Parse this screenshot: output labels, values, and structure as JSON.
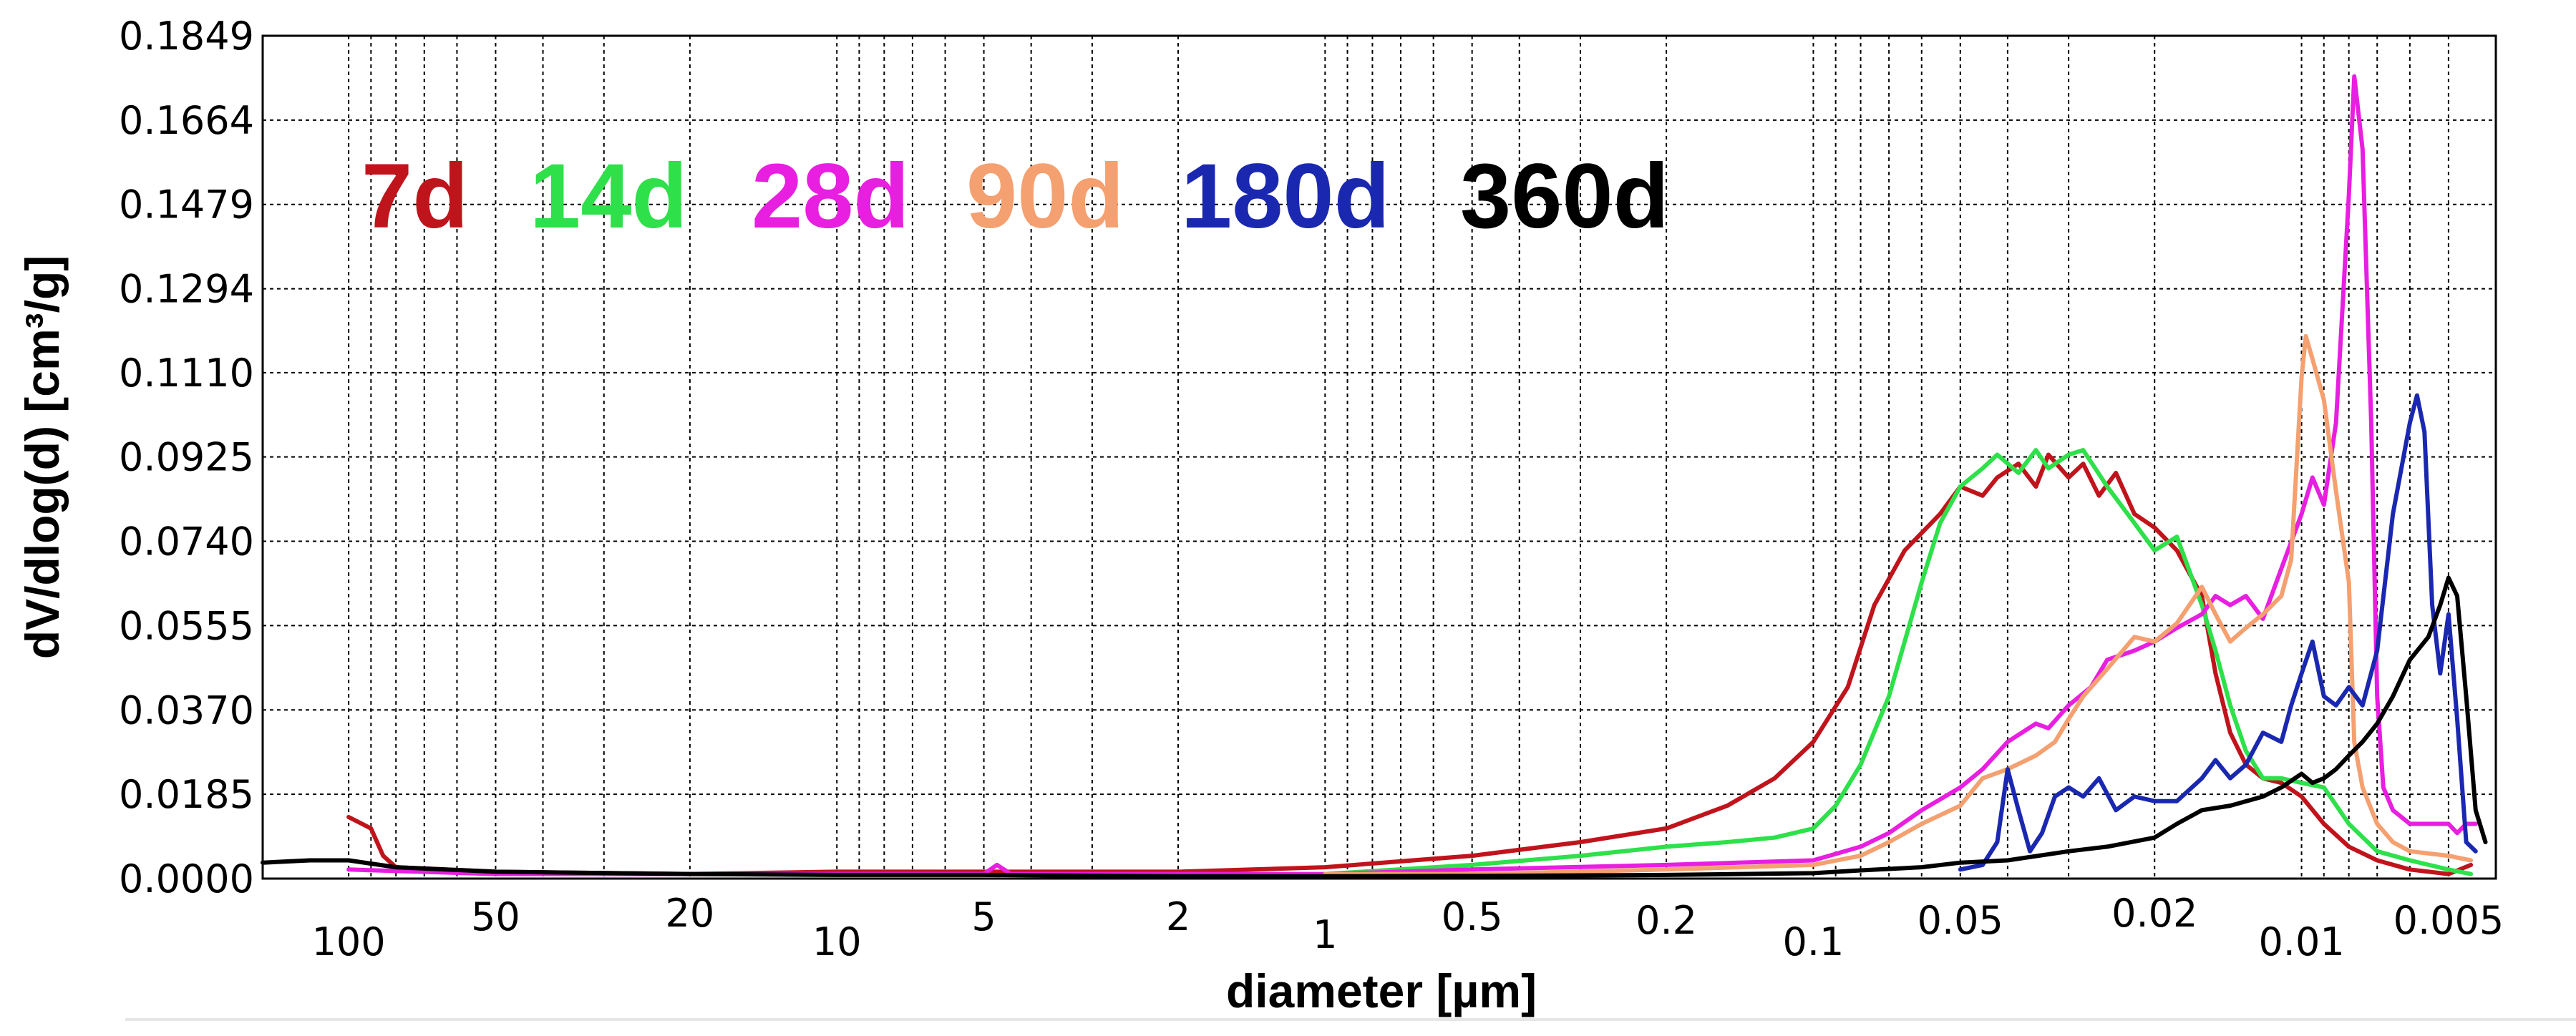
{
  "chart_data": {
    "type": "line",
    "title": "",
    "xlabel": "diameter [µm]",
    "ylabel": "dV/dlog(d) [cm³/g]",
    "x_scale": "log",
    "x_reversed": true,
    "xlim": [
      150,
      0.004
    ],
    "ylim": [
      0,
      0.1849
    ],
    "grid": true,
    "legend_position": "top-left",
    "y_ticks": [
      "0.0000",
      "0.0185",
      "0.0370",
      "0.0555",
      "0.0740",
      "0.0925",
      "0.1110",
      "0.1294",
      "0.1479",
      "0.1664",
      "0.1849"
    ],
    "x_ticks": [
      {
        "value": 100,
        "label": "100"
      },
      {
        "value": 50,
        "label": "50"
      },
      {
        "value": 20,
        "label": "20"
      },
      {
        "value": 10,
        "label": "10"
      },
      {
        "value": 5,
        "label": "5"
      },
      {
        "value": 2,
        "label": "2"
      },
      {
        "value": 1,
        "label": "1"
      },
      {
        "value": 0.5,
        "label": "0.5"
      },
      {
        "value": 0.2,
        "label": "0.2"
      },
      {
        "value": 0.1,
        "label": "0.1"
      },
      {
        "value": 0.05,
        "label": "0.05"
      },
      {
        "value": 0.02,
        "label": "0.02"
      },
      {
        "value": 0.01,
        "label": "0.01"
      },
      {
        "value": 0.005,
        "label": "0.005"
      }
    ],
    "series": [
      {
        "name": "7d",
        "color": "#c0141c",
        "points": [
          [
            100,
            0.0135
          ],
          [
            90,
            0.011
          ],
          [
            85,
            0.005
          ],
          [
            80,
            0.0025
          ],
          [
            50,
            0.0015
          ],
          [
            20,
            0.001
          ],
          [
            10,
            0.0015
          ],
          [
            5,
            0.0015
          ],
          [
            2,
            0.0015
          ],
          [
            1,
            0.0025
          ],
          [
            0.5,
            0.005
          ],
          [
            0.3,
            0.008
          ],
          [
            0.2,
            0.011
          ],
          [
            0.15,
            0.016
          ],
          [
            0.12,
            0.022
          ],
          [
            0.1,
            0.03
          ],
          [
            0.085,
            0.042
          ],
          [
            0.075,
            0.06
          ],
          [
            0.065,
            0.072
          ],
          [
            0.055,
            0.08
          ],
          [
            0.05,
            0.086
          ],
          [
            0.045,
            0.084
          ],
          [
            0.042,
            0.088
          ],
          [
            0.038,
            0.091
          ],
          [
            0.035,
            0.086
          ],
          [
            0.033,
            0.093
          ],
          [
            0.03,
            0.088
          ],
          [
            0.028,
            0.091
          ],
          [
            0.026,
            0.084
          ],
          [
            0.024,
            0.089
          ],
          [
            0.022,
            0.08
          ],
          [
            0.02,
            0.077
          ],
          [
            0.018,
            0.072
          ],
          [
            0.016,
            0.062
          ],
          [
            0.015,
            0.045
          ],
          [
            0.014,
            0.032
          ],
          [
            0.013,
            0.025
          ],
          [
            0.012,
            0.022
          ],
          [
            0.011,
            0.021
          ],
          [
            0.01,
            0.018
          ],
          [
            0.009,
            0.012
          ],
          [
            0.008,
            0.007
          ],
          [
            0.007,
            0.004
          ],
          [
            0.006,
            0.002
          ],
          [
            0.005,
            0.001
          ],
          [
            0.0045,
            0.003
          ]
        ]
      },
      {
        "name": "14d",
        "color": "#2ee04a",
        "points": [
          [
            1,
            0.001
          ],
          [
            0.5,
            0.003
          ],
          [
            0.3,
            0.005
          ],
          [
            0.2,
            0.007
          ],
          [
            0.15,
            0.008
          ],
          [
            0.12,
            0.009
          ],
          [
            0.1,
            0.011
          ],
          [
            0.09,
            0.016
          ],
          [
            0.08,
            0.025
          ],
          [
            0.07,
            0.04
          ],
          [
            0.06,
            0.065
          ],
          [
            0.055,
            0.078
          ],
          [
            0.05,
            0.086
          ],
          [
            0.045,
            0.09
          ],
          [
            0.042,
            0.093
          ],
          [
            0.038,
            0.089
          ],
          [
            0.035,
            0.094
          ],
          [
            0.033,
            0.09
          ],
          [
            0.03,
            0.093
          ],
          [
            0.028,
            0.094
          ],
          [
            0.025,
            0.086
          ],
          [
            0.022,
            0.078
          ],
          [
            0.02,
            0.072
          ],
          [
            0.018,
            0.075
          ],
          [
            0.016,
            0.06
          ],
          [
            0.015,
            0.05
          ],
          [
            0.014,
            0.038
          ],
          [
            0.013,
            0.028
          ],
          [
            0.012,
            0.022
          ],
          [
            0.011,
            0.022
          ],
          [
            0.01,
            0.021
          ],
          [
            0.009,
            0.02
          ],
          [
            0.008,
            0.012
          ],
          [
            0.007,
            0.006
          ],
          [
            0.006,
            0.004
          ],
          [
            0.005,
            0.002
          ],
          [
            0.0045,
            0.001
          ]
        ]
      },
      {
        "name": "28d",
        "color": "#e81ee0",
        "points": [
          [
            100,
            0.002
          ],
          [
            50,
            0.001
          ],
          [
            20,
            0.001
          ],
          [
            10,
            0.001
          ],
          [
            5,
            0.001
          ],
          [
            4.7,
            0.003
          ],
          [
            4.4,
            0.001
          ],
          [
            2,
            0.001
          ],
          [
            1,
            0.001
          ],
          [
            0.5,
            0.002
          ],
          [
            0.2,
            0.003
          ],
          [
            0.1,
            0.004
          ],
          [
            0.08,
            0.007
          ],
          [
            0.07,
            0.01
          ],
          [
            0.06,
            0.015
          ],
          [
            0.05,
            0.02
          ],
          [
            0.045,
            0.024
          ],
          [
            0.04,
            0.03
          ],
          [
            0.035,
            0.034
          ],
          [
            0.033,
            0.033
          ],
          [
            0.03,
            0.038
          ],
          [
            0.027,
            0.042
          ],
          [
            0.025,
            0.048
          ],
          [
            0.022,
            0.05
          ],
          [
            0.02,
            0.052
          ],
          [
            0.018,
            0.055
          ],
          [
            0.016,
            0.058
          ],
          [
            0.015,
            0.062
          ],
          [
            0.014,
            0.06
          ],
          [
            0.013,
            0.062
          ],
          [
            0.012,
            0.057
          ],
          [
            0.011,
            0.068
          ],
          [
            0.01,
            0.08
          ],
          [
            0.0095,
            0.088
          ],
          [
            0.009,
            0.082
          ],
          [
            0.0085,
            0.1
          ],
          [
            0.008,
            0.15
          ],
          [
            0.0078,
            0.176
          ],
          [
            0.0075,
            0.16
          ],
          [
            0.0072,
            0.1
          ],
          [
            0.007,
            0.04
          ],
          [
            0.0068,
            0.02
          ],
          [
            0.0065,
            0.015
          ],
          [
            0.006,
            0.012
          ],
          [
            0.0055,
            0.012
          ],
          [
            0.005,
            0.012
          ],
          [
            0.0048,
            0.01
          ],
          [
            0.0046,
            0.012
          ],
          [
            0.0044,
            0.012
          ]
        ]
      },
      {
        "name": "90d",
        "color": "#f4a070",
        "points": [
          [
            1,
            0.001
          ],
          [
            0.5,
            0.001
          ],
          [
            0.2,
            0.002
          ],
          [
            0.1,
            0.003
          ],
          [
            0.08,
            0.005
          ],
          [
            0.07,
            0.008
          ],
          [
            0.06,
            0.012
          ],
          [
            0.05,
            0.016
          ],
          [
            0.045,
            0.022
          ],
          [
            0.04,
            0.024
          ],
          [
            0.035,
            0.027
          ],
          [
            0.032,
            0.03
          ],
          [
            0.03,
            0.035
          ],
          [
            0.028,
            0.04
          ],
          [
            0.025,
            0.046
          ],
          [
            0.022,
            0.053
          ],
          [
            0.02,
            0.052
          ],
          [
            0.018,
            0.056
          ],
          [
            0.016,
            0.064
          ],
          [
            0.015,
            0.058
          ],
          [
            0.014,
            0.052
          ],
          [
            0.013,
            0.055
          ],
          [
            0.012,
            0.058
          ],
          [
            0.011,
            0.062
          ],
          [
            0.0105,
            0.07
          ],
          [
            0.01,
            0.11
          ],
          [
            0.0098,
            0.119
          ],
          [
            0.0095,
            0.114
          ],
          [
            0.009,
            0.105
          ],
          [
            0.0085,
            0.085
          ],
          [
            0.008,
            0.065
          ],
          [
            0.0078,
            0.03
          ],
          [
            0.0075,
            0.02
          ],
          [
            0.007,
            0.012
          ],
          [
            0.0065,
            0.008
          ],
          [
            0.006,
            0.006
          ],
          [
            0.005,
            0.005
          ],
          [
            0.0045,
            0.004
          ]
        ]
      },
      {
        "name": "180d",
        "color": "#1a28b0",
        "points": [
          [
            0.05,
            0.002
          ],
          [
            0.045,
            0.003
          ],
          [
            0.042,
            0.008
          ],
          [
            0.04,
            0.024
          ],
          [
            0.038,
            0.015
          ],
          [
            0.036,
            0.006
          ],
          [
            0.034,
            0.01
          ],
          [
            0.032,
            0.018
          ],
          [
            0.03,
            0.02
          ],
          [
            0.028,
            0.018
          ],
          [
            0.026,
            0.022
          ],
          [
            0.024,
            0.015
          ],
          [
            0.022,
            0.018
          ],
          [
            0.02,
            0.017
          ],
          [
            0.018,
            0.017
          ],
          [
            0.016,
            0.022
          ],
          [
            0.015,
            0.026
          ],
          [
            0.014,
            0.022
          ],
          [
            0.013,
            0.025
          ],
          [
            0.012,
            0.032
          ],
          [
            0.011,
            0.03
          ],
          [
            0.0105,
            0.038
          ],
          [
            0.01,
            0.045
          ],
          [
            0.0095,
            0.052
          ],
          [
            0.009,
            0.04
          ],
          [
            0.0085,
            0.038
          ],
          [
            0.008,
            0.042
          ],
          [
            0.0075,
            0.038
          ],
          [
            0.007,
            0.05
          ],
          [
            0.0065,
            0.08
          ],
          [
            0.006,
            0.1
          ],
          [
            0.0058,
            0.106
          ],
          [
            0.0056,
            0.098
          ],
          [
            0.0054,
            0.06
          ],
          [
            0.0052,
            0.045
          ],
          [
            0.005,
            0.058
          ],
          [
            0.0048,
            0.035
          ],
          [
            0.0046,
            0.008
          ],
          [
            0.0044,
            0.006
          ]
        ]
      },
      {
        "name": "360d",
        "color": "#000000",
        "points": [
          [
            150,
            0.0035
          ],
          [
            120,
            0.004
          ],
          [
            100,
            0.004
          ],
          [
            80,
            0.0025
          ],
          [
            50,
            0.0015
          ],
          [
            20,
            0.001
          ],
          [
            10,
            0.0008
          ],
          [
            5,
            0.0008
          ],
          [
            2,
            0.0005
          ],
          [
            1,
            0.0005
          ],
          [
            0.5,
            0.0006
          ],
          [
            0.2,
            0.0008
          ],
          [
            0.1,
            0.0012
          ],
          [
            0.08,
            0.0018
          ],
          [
            0.06,
            0.0025
          ],
          [
            0.05,
            0.0035
          ],
          [
            0.04,
            0.004
          ],
          [
            0.03,
            0.006
          ],
          [
            0.025,
            0.007
          ],
          [
            0.02,
            0.009
          ],
          [
            0.018,
            0.012
          ],
          [
            0.016,
            0.015
          ],
          [
            0.014,
            0.016
          ],
          [
            0.012,
            0.018
          ],
          [
            0.011,
            0.02
          ],
          [
            0.01,
            0.023
          ],
          [
            0.0095,
            0.021
          ],
          [
            0.009,
            0.022
          ],
          [
            0.0085,
            0.024
          ],
          [
            0.008,
            0.027
          ],
          [
            0.0075,
            0.03
          ],
          [
            0.007,
            0.034
          ],
          [
            0.0065,
            0.04
          ],
          [
            0.006,
            0.048
          ],
          [
            0.0055,
            0.053
          ],
          [
            0.0052,
            0.06
          ],
          [
            0.005,
            0.066
          ],
          [
            0.0048,
            0.062
          ],
          [
            0.0046,
            0.04
          ],
          [
            0.0044,
            0.015
          ],
          [
            0.0042,
            0.008
          ]
        ]
      }
    ]
  }
}
